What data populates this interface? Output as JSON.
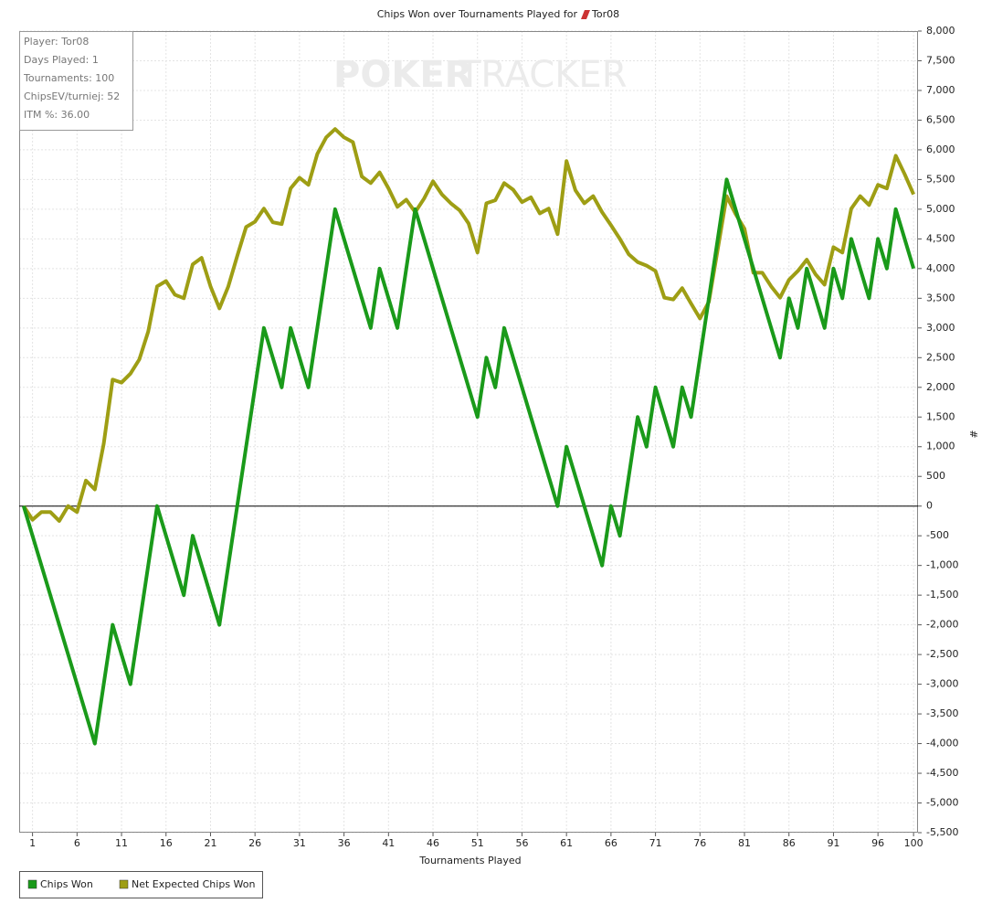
{
  "chart_data": {
    "type": "line",
    "title": "Chips Won over Tournaments Played for",
    "title_player": "Tor08",
    "watermark": [
      "POKER",
      "TRACKER"
    ],
    "info": [
      "Player: Tor08",
      "Days Played: 1",
      "Tournaments: 100",
      "ChipsEV/turniej: 52",
      "ITM %: 36.00"
    ],
    "x_label": "Tournaments Played",
    "y_label": "#",
    "x": [
      0,
      1,
      2,
      3,
      4,
      5,
      6,
      7,
      8,
      9,
      10,
      11,
      12,
      13,
      14,
      15,
      16,
      17,
      18,
      19,
      20,
      21,
      22,
      23,
      24,
      25,
      26,
      27,
      28,
      29,
      30,
      31,
      32,
      33,
      34,
      35,
      36,
      37,
      38,
      39,
      40,
      41,
      42,
      43,
      44,
      45,
      46,
      47,
      48,
      49,
      50,
      51,
      52,
      53,
      54,
      55,
      56,
      57,
      58,
      59,
      60,
      61,
      62,
      63,
      64,
      65,
      66,
      67,
      68,
      69,
      70,
      71,
      72,
      73,
      74,
      75,
      76,
      77,
      78,
      79,
      80,
      81,
      82,
      83,
      84,
      85,
      86,
      87,
      88,
      89,
      90,
      91,
      92,
      93,
      94,
      95,
      96,
      97,
      98,
      99,
      100
    ],
    "series": [
      {
        "name": "Chips Won",
        "color": "#1a9a1a",
        "values": [
          0,
          -500,
          -1000,
          -1500,
          -2000,
          -2500,
          -3000,
          -3500,
          -4000,
          -3000,
          -2000,
          -2500,
          -3000,
          -2000,
          -1000,
          0,
          -500,
          -1000,
          -1500,
          -500,
          -1000,
          -1500,
          -2000,
          -1000,
          0,
          1000,
          2000,
          3000,
          2500,
          2000,
          3000,
          2500,
          2000,
          3000,
          4000,
          5000,
          4500,
          4000,
          3500,
          3000,
          4000,
          3500,
          3000,
          4000,
          5000,
          4500,
          4000,
          3500,
          3000,
          2500,
          2000,
          1500,
          2500,
          2000,
          3000,
          2500,
          2000,
          1500,
          1000,
          500,
          0,
          1000,
          500,
          0,
          -500,
          -1000,
          0,
          -500,
          500,
          1500,
          1000,
          2000,
          1500,
          1000,
          2000,
          1500,
          2500,
          3500,
          4500,
          5500,
          5000,
          4500,
          4000,
          3500,
          3000,
          2500,
          3500,
          3000,
          4000,
          3500,
          3000,
          4000,
          3500,
          4500,
          4000,
          3500,
          4500,
          4000,
          5000,
          4500,
          4000
        ]
      },
      {
        "name": "Net Expected Chips Won",
        "color": "#9e9e14",
        "values": [
          0,
          -230,
          -100,
          -100,
          -250,
          0,
          -100,
          430,
          280,
          1050,
          2130,
          2080,
          2230,
          2470,
          2940,
          3700,
          3790,
          3560,
          3500,
          4070,
          4180,
          3700,
          3330,
          3700,
          4210,
          4700,
          4790,
          5010,
          4780,
          4750,
          5350,
          5530,
          5410,
          5930,
          6210,
          6350,
          6210,
          6130,
          5550,
          5440,
          5620,
          5350,
          5040,
          5160,
          4950,
          5180,
          5470,
          5250,
          5100,
          4980,
          4760,
          4270,
          5100,
          5150,
          5440,
          5330,
          5120,
          5200,
          4930,
          5010,
          4580,
          5810,
          5320,
          5100,
          5220,
          4950,
          4730,
          4500,
          4240,
          4110,
          4050,
          3960,
          3510,
          3480,
          3670,
          3410,
          3160,
          3440,
          4330,
          5220,
          4920,
          4670,
          3930,
          3930,
          3700,
          3510,
          3810,
          3960,
          4150,
          3900,
          3730,
          4360,
          4270,
          5010,
          5220,
          5070,
          5410,
          5350,
          5900,
          5590,
          5250
        ]
      }
    ],
    "xlim": [
      -0.5,
      100.5
    ],
    "xticks": [
      1,
      6,
      11,
      16,
      21,
      26,
      31,
      36,
      41,
      46,
      51,
      56,
      61,
      66,
      71,
      76,
      81,
      86,
      91,
      96,
      100
    ],
    "ylim": [
      -5500,
      8000
    ],
    "yticks": [
      {
        "value": -5500,
        "label": "-5,500"
      },
      {
        "value": -5000,
        "label": "-5,000"
      },
      {
        "value": -4500,
        "label": "-4,500"
      },
      {
        "value": -4000,
        "label": "-4,000"
      },
      {
        "value": -3500,
        "label": "-3,500"
      },
      {
        "value": -3000,
        "label": "-3,000"
      },
      {
        "value": -2500,
        "label": "-2,500"
      },
      {
        "value": -2000,
        "label": "-2,000"
      },
      {
        "value": -1500,
        "label": "-1,500"
      },
      {
        "value": -1000,
        "label": "-1,000"
      },
      -500,
      0,
      500,
      {
        "value": 1000,
        "label": "1,000"
      },
      {
        "value": 1500,
        "label": "1,500"
      },
      {
        "value": 2000,
        "label": "2,000"
      },
      {
        "value": 2500,
        "label": "2,500"
      },
      {
        "value": 3000,
        "label": "3,000"
      },
      {
        "value": 3500,
        "label": "3,500"
      },
      {
        "value": 4000,
        "label": "4,000"
      },
      {
        "value": 4500,
        "label": "4,500"
      },
      {
        "value": 5000,
        "label": "5,000"
      },
      {
        "value": 5500,
        "label": "5,500"
      },
      {
        "value": 6000,
        "label": "6,000"
      },
      {
        "value": 6500,
        "label": "6,500"
      },
      {
        "value": 7000,
        "label": "7,000"
      },
      {
        "value": 7500,
        "label": "7,500"
      },
      {
        "value": 8000,
        "label": "8,000"
      }
    ],
    "grid": true,
    "legend": "bottom-left"
  }
}
